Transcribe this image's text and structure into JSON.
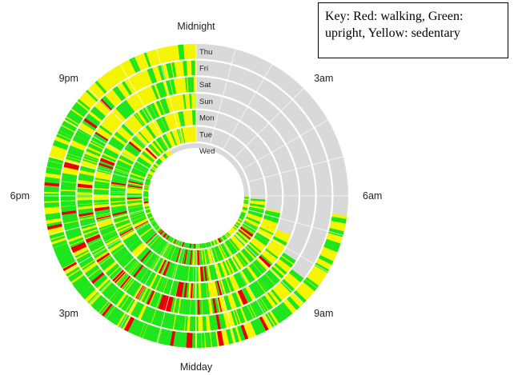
{
  "key": {
    "text": "Key: Red: walking, Green: upright, Yellow: sedentary"
  },
  "chart_data": {
    "type": "radial-activity-spiral",
    "hour_labels": [
      {
        "text": "Midnight",
        "hour": 0
      },
      {
        "text": "3am",
        "hour": 3
      },
      {
        "text": "6am",
        "hour": 6
      },
      {
        "text": "9am",
        "hour": 9
      },
      {
        "text": "Midday",
        "hour": 12
      },
      {
        "text": "3pm",
        "hour": 15
      },
      {
        "text": "6pm",
        "hour": 18
      },
      {
        "text": "9pm",
        "hour": 21
      }
    ],
    "days": [
      "Thu",
      "Fri",
      "Sat",
      "Sun",
      "Mon",
      "Tue",
      "Wed"
    ],
    "colors": {
      "walking": "#e60000",
      "upright": "#1ee61e",
      "sedentary": "#f5f500",
      "no_data": "#d9d9d9"
    },
    "rings": [
      {
        "day": "Thu",
        "data_hours": [
          [
            6.5,
            24
          ]
        ]
      },
      {
        "day": "Fri",
        "data_hours": [
          [
            8.5,
            24
          ]
        ]
      },
      {
        "day": "Sat",
        "data_hours": [
          [
            8.2,
            24
          ]
        ]
      },
      {
        "day": "Sun",
        "data_hours": [
          [
            7.5,
            24
          ]
        ]
      },
      {
        "day": "Mon",
        "data_hours": [
          [
            6.7,
            24
          ]
        ]
      },
      {
        "day": "Tue",
        "data_hours": [
          [
            6.2,
            24
          ]
        ]
      },
      {
        "day": "Wed",
        "data_hours": [
          [
            6.0,
            22.0
          ]
        ]
      }
    ]
  }
}
